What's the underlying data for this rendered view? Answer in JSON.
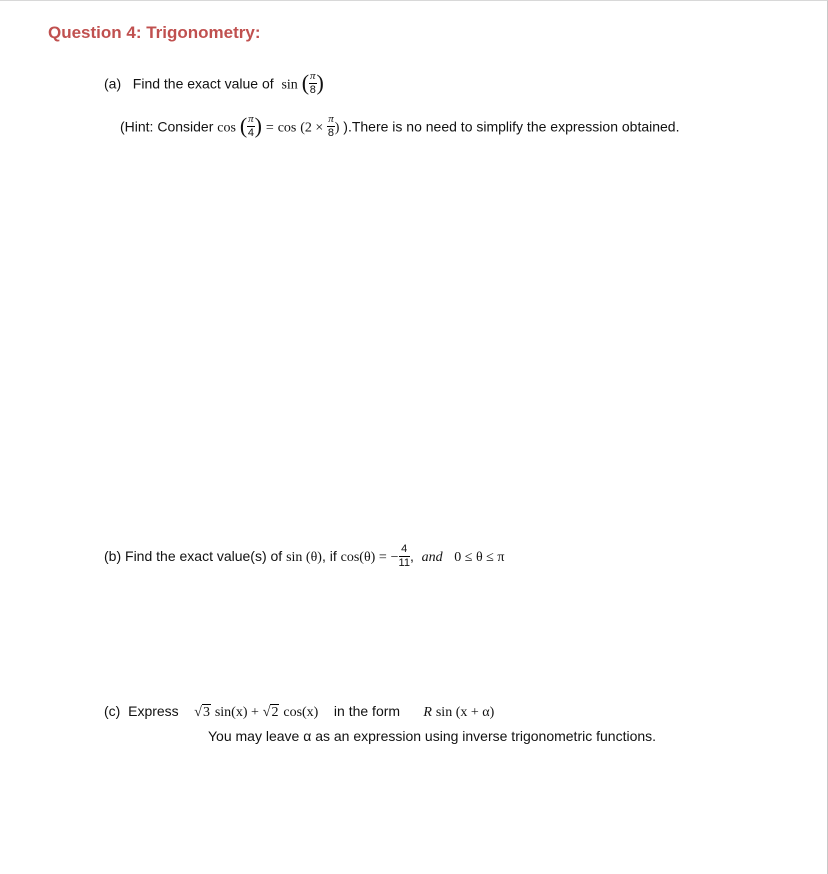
{
  "title": "Question 4: Trigonometry:",
  "colors": {
    "title": "#c0504f",
    "text": "#111111",
    "background": "#ffffff"
  },
  "partA": {
    "label": "(a)",
    "text_before": "Find the exact value of",
    "func": "sin",
    "arg_num": "π",
    "arg_den": "8",
    "hint_prefix": "(Hint: Consider",
    "hint_func1": "cos",
    "hint_f1_num": "π",
    "hint_f1_den": "4",
    "hint_eq": "=",
    "hint_func2": "cos",
    "hint_f2_mult": "2 ×",
    "hint_f2_num": "π",
    "hint_f2_den": "8",
    "hint_suffix": ").There is no need to simplify the expression obtained."
  },
  "partB": {
    "label": "(b)",
    "text_before": "Find the exact value(s) of",
    "f1": "sin (θ)",
    "mid": ", if",
    "f2": "cos(θ) =",
    "frac_sign": "−",
    "frac_num": "4",
    "frac_den": "11",
    "comma": ",",
    "and": "and",
    "range": "0 ≤ θ ≤ π"
  },
  "partC": {
    "label": "(c)",
    "text1": "Express",
    "sqrt1": "3",
    "f1": "sin(x) +",
    "sqrt2": "2",
    "f2": "cos(x)",
    "text2": "in the form",
    "R": "R",
    "f3": "sin (x + α)",
    "line2": "You may leave α as an expression using inverse trigonometric functions."
  }
}
